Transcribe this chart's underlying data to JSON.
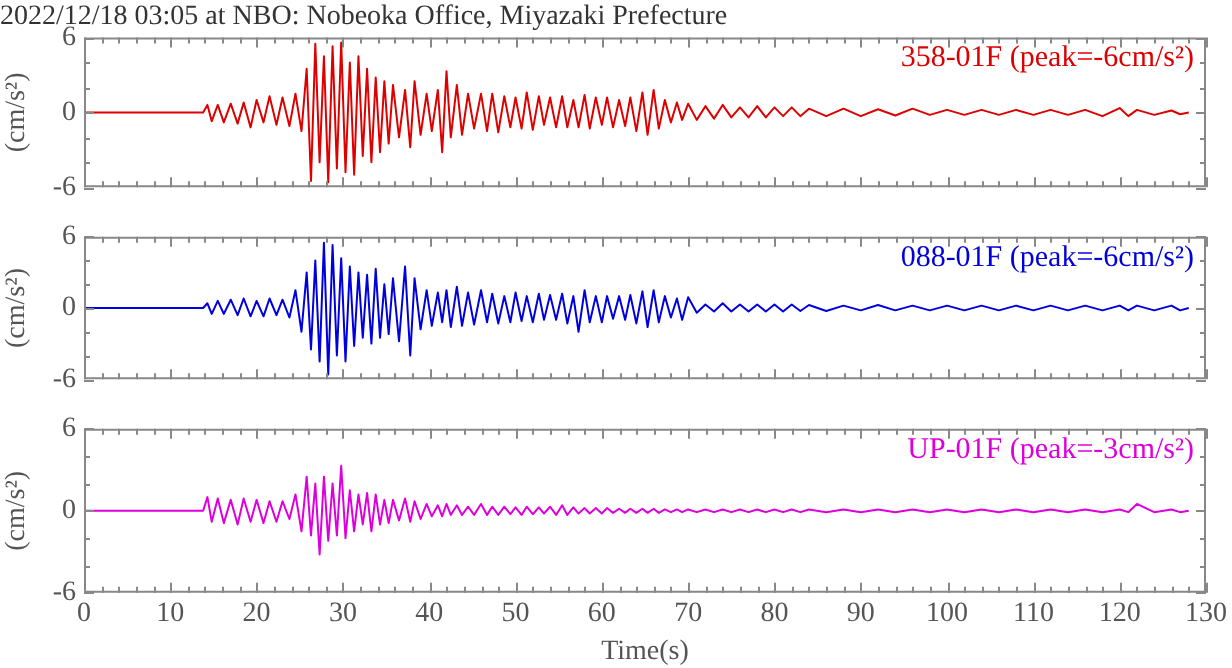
{
  "chart_data": [
    {
      "type": "line",
      "title": "2022/12/18 03:05 at NBO: Nobeoka Office, Miyazaki Prefecture",
      "ylabel": "(cm/s²)",
      "tick_labels": "y",
      "xlim": [
        0,
        130
      ],
      "ylim": [
        -6,
        6
      ],
      "yticks": [
        -6,
        {
          "value": -4,
          "label": null
        },
        {
          "value": -2,
          "label": null
        },
        0,
        {
          "value": 2,
          "label": null
        },
        {
          "value": 4,
          "label": null
        },
        6
      ],
      "xticks": [
        0,
        {
          "value": 2,
          "label": null
        },
        {
          "value": 4,
          "label": null
        },
        {
          "value": 6,
          "label": null
        },
        {
          "value": 8,
          "label": null
        },
        10,
        {
          "value": 12,
          "label": null
        },
        {
          "value": 14,
          "label": null
        },
        {
          "value": 16,
          "label": null
        },
        {
          "value": 18,
          "label": null
        },
        20,
        {
          "value": 22,
          "label": null
        },
        {
          "value": 24,
          "label": null
        },
        {
          "value": 26,
          "label": null
        },
        {
          "value": 28,
          "label": null
        },
        30,
        {
          "value": 32,
          "label": null
        },
        {
          "value": 34,
          "label": null
        },
        {
          "value": 36,
          "label": null
        },
        {
          "value": 38,
          "label": null
        },
        40,
        {
          "value": 42,
          "label": null
        },
        {
          "value": 44,
          "label": null
        },
        {
          "value": 46,
          "label": null
        },
        {
          "value": 48,
          "label": null
        },
        50,
        {
          "value": 52,
          "label": null
        },
        {
          "value": 54,
          "label": null
        },
        {
          "value": 56,
          "label": null
        },
        {
          "value": 58,
          "label": null
        },
        60,
        {
          "value": 62,
          "label": null
        },
        {
          "value": 64,
          "label": null
        },
        {
          "value": 66,
          "label": null
        },
        {
          "value": 68,
          "label": null
        },
        70,
        {
          "value": 72,
          "label": null
        },
        {
          "value": 74,
          "label": null
        },
        {
          "value": 76,
          "label": null
        },
        {
          "value": 78,
          "label": null
        },
        80,
        {
          "value": 82,
          "label": null
        },
        {
          "value": 84,
          "label": null
        },
        {
          "value": 86,
          "label": null
        },
        {
          "value": 88,
          "label": null
        },
        90,
        {
          "value": 92,
          "label": null
        },
        {
          "value": 94,
          "label": null
        },
        {
          "value": 96,
          "label": null
        },
        {
          "value": 98,
          "label": null
        },
        100,
        {
          "value": 102,
          "label": null
        },
        {
          "value": 104,
          "label": null
        },
        {
          "value": 106,
          "label": null
        },
        {
          "value": 108,
          "label": null
        },
        110,
        {
          "value": 112,
          "label": null
        },
        {
          "value": 114,
          "label": null
        },
        {
          "value": 116,
          "label": null
        },
        {
          "value": 118,
          "label": null
        },
        120,
        {
          "value": 122,
          "label": null
        },
        {
          "value": 124,
          "label": null
        },
        {
          "value": 126,
          "label": null
        },
        {
          "value": 128,
          "label": null
        },
        130
      ],
      "x": [
        0,
        13.8,
        14.3,
        14.8,
        15.5,
        16.2,
        17,
        17.8,
        18.5,
        19.3,
        20,
        20.8,
        21.5,
        22.3,
        23,
        23.8,
        24.5,
        25.2,
        25.8,
        26.3,
        26.8,
        27.3,
        27.8,
        28.3,
        28.8,
        29.3,
        29.8,
        30.3,
        30.8,
        31.3,
        31.8,
        32.3,
        32.8,
        33.3,
        33.8,
        34.3,
        34.8,
        35.3,
        35.8,
        36.5,
        37.2,
        37.8,
        38.3,
        39,
        39.7,
        40.3,
        41,
        41.5,
        42,
        42.5,
        43.2,
        43.8,
        44.5,
        45.2,
        46,
        46.7,
        47.3,
        48,
        48.7,
        49.4,
        50,
        50.7,
        51.3,
        52,
        52.7,
        53.3,
        54,
        54.7,
        55.4,
        56,
        56.7,
        57.3,
        58,
        58.6,
        59.3,
        60,
        60.6,
        61.3,
        62,
        62.7,
        63.3,
        64,
        64.7,
        65.3,
        66,
        66.6,
        67.3,
        68,
        68.7,
        69.3,
        70,
        71,
        72,
        73,
        74,
        75,
        76,
        77,
        78,
        79,
        80,
        81,
        82,
        83,
        84,
        86,
        88,
        90,
        92,
        94,
        96,
        98,
        100,
        102,
        104,
        106,
        108,
        110,
        112,
        114,
        116,
        118,
        120,
        121,
        122,
        124,
        126,
        127,
        128
      ],
      "series": [
        {
          "name": "358-01F (peak=-6cm/s²)",
          "color": "#dd0000",
          "values": [
            0,
            0,
            0.6,
            -0.7,
            0.6,
            -0.8,
            0.7,
            -0.9,
            0.8,
            -1.2,
            1.0,
            -0.8,
            1.3,
            -1.0,
            1.2,
            -1.1,
            1.5,
            -1.5,
            3.5,
            -5.5,
            5.5,
            -4.0,
            4.5,
            -5.6,
            5.3,
            -4.5,
            5.6,
            -4.8,
            4.0,
            -5.0,
            4.5,
            -3.5,
            3.5,
            -4.0,
            2.8,
            -3.2,
            2.5,
            -2.5,
            2.2,
            -2.0,
            1.8,
            -2.8,
            2.5,
            -1.8,
            1.5,
            -1.5,
            1.8,
            -3.2,
            3.3,
            -2.0,
            2.2,
            -1.8,
            1.5,
            -1.3,
            1.5,
            -1.5,
            1.5,
            -1.6,
            1.3,
            -1.2,
            1.2,
            -1.3,
            1.6,
            -1.4,
            1.3,
            -1.0,
            1.2,
            -1.2,
            1.3,
            -1.2,
            1.0,
            -1.2,
            1.4,
            -1.3,
            1.2,
            -1.0,
            1.2,
            -1.2,
            1.0,
            -1.1,
            1.2,
            -1.5,
            1.6,
            -1.8,
            1.8,
            -1.3,
            1.0,
            -0.8,
            0.8,
            -0.6,
            0.7,
            -0.6,
            0.5,
            -0.5,
            0.6,
            -0.4,
            0.4,
            -0.4,
            0.5,
            -0.4,
            0.4,
            -0.3,
            0.4,
            -0.3,
            0.3,
            -0.3,
            0.3,
            -0.3,
            0.25,
            -0.25,
            0.3,
            -0.2,
            0.2,
            -0.2,
            0.2,
            -0.2,
            0.2,
            -0.2,
            0.2,
            -0.2,
            0.2,
            -0.3,
            0.35,
            -0.3,
            0.2,
            -0.2,
            0.15,
            -0.15,
            0
          ]
        }
      ]
    },
    {
      "type": "line",
      "ylabel": "(cm/s²)",
      "tick_labels": "y",
      "xlim": [
        0,
        130
      ],
      "ylim": [
        -6,
        6
      ],
      "yticks": [
        -6,
        {
          "value": -4,
          "label": null
        },
        {
          "value": -2,
          "label": null
        },
        0,
        {
          "value": 2,
          "label": null
        },
        {
          "value": 4,
          "label": null
        },
        6
      ],
      "xticks": [
        0,
        {
          "value": 2,
          "label": null
        },
        {
          "value": 4,
          "label": null
        },
        {
          "value": 6,
          "label": null
        },
        {
          "value": 8,
          "label": null
        },
        10,
        {
          "value": 12,
          "label": null
        },
        {
          "value": 14,
          "label": null
        },
        {
          "value": 16,
          "label": null
        },
        {
          "value": 18,
          "label": null
        },
        20,
        {
          "value": 22,
          "label": null
        },
        {
          "value": 24,
          "label": null
        },
        {
          "value": 26,
          "label": null
        },
        {
          "value": 28,
          "label": null
        },
        30,
        {
          "value": 32,
          "label": null
        },
        {
          "value": 34,
          "label": null
        },
        {
          "value": 36,
          "label": null
        },
        {
          "value": 38,
          "label": null
        },
        40,
        {
          "value": 42,
          "label": null
        },
        {
          "value": 44,
          "label": null
        },
        {
          "value": 46,
          "label": null
        },
        {
          "value": 48,
          "label": null
        },
        50,
        {
          "value": 52,
          "label": null
        },
        {
          "value": 54,
          "label": null
        },
        {
          "value": 56,
          "label": null
        },
        {
          "value": 58,
          "label": null
        },
        60,
        {
          "value": 62,
          "label": null
        },
        {
          "value": 64,
          "label": null
        },
        {
          "value": 66,
          "label": null
        },
        {
          "value": 68,
          "label": null
        },
        70,
        {
          "value": 72,
          "label": null
        },
        {
          "value": 74,
          "label": null
        },
        {
          "value": 76,
          "label": null
        },
        {
          "value": 78,
          "label": null
        },
        80,
        {
          "value": 82,
          "label": null
        },
        {
          "value": 84,
          "label": null
        },
        {
          "value": 86,
          "label": null
        },
        {
          "value": 88,
          "label": null
        },
        90,
        {
          "value": 92,
          "label": null
        },
        {
          "value": 94,
          "label": null
        },
        {
          "value": 96,
          "label": null
        },
        {
          "value": 98,
          "label": null
        },
        100,
        {
          "value": 102,
          "label": null
        },
        {
          "value": 104,
          "label": null
        },
        {
          "value": 106,
          "label": null
        },
        {
          "value": 108,
          "label": null
        },
        110,
        {
          "value": 112,
          "label": null
        },
        {
          "value": 114,
          "label": null
        },
        {
          "value": 116,
          "label": null
        },
        {
          "value": 118,
          "label": null
        },
        120,
        {
          "value": 122,
          "label": null
        },
        {
          "value": 124,
          "label": null
        },
        {
          "value": 126,
          "label": null
        },
        {
          "value": 128,
          "label": null
        },
        130
      ],
      "x": [
        0,
        13.8,
        14.3,
        14.8,
        15.5,
        16.2,
        17,
        17.8,
        18.5,
        19.3,
        20,
        20.8,
        21.5,
        22.3,
        23,
        23.8,
        24.5,
        25.2,
        25.8,
        26.3,
        26.8,
        27.3,
        27.8,
        28.3,
        28.8,
        29.3,
        29.8,
        30.3,
        30.8,
        31.3,
        31.8,
        32.3,
        32.8,
        33.3,
        33.8,
        34.3,
        34.8,
        35.3,
        35.8,
        36.5,
        37.2,
        37.8,
        38.3,
        39,
        39.7,
        40.3,
        41,
        41.5,
        42,
        42.5,
        43.2,
        43.8,
        44.5,
        45.2,
        46,
        46.7,
        47.3,
        48,
        48.7,
        49.4,
        50,
        50.7,
        51.3,
        52,
        52.7,
        53.3,
        54,
        54.7,
        55.4,
        56,
        56.7,
        57.3,
        58,
        58.6,
        59.3,
        60,
        60.6,
        61.3,
        62,
        62.7,
        63.3,
        64,
        64.7,
        65.3,
        66,
        66.6,
        67.3,
        68,
        68.7,
        69.3,
        70,
        71,
        72,
        73,
        74,
        75,
        76,
        77,
        78,
        79,
        80,
        81,
        82,
        83,
        84,
        86,
        88,
        90,
        92,
        94,
        96,
        98,
        100,
        102,
        104,
        106,
        108,
        110,
        112,
        114,
        116,
        118,
        120,
        121,
        122,
        124,
        126,
        127,
        128
      ],
      "series": [
        {
          "name": "088-01F (peak=-6cm/s²)",
          "color": "#0000dd",
          "values": [
            0,
            0,
            0.4,
            -0.5,
            0.6,
            -0.5,
            0.7,
            -0.6,
            0.8,
            -0.7,
            0.6,
            -0.7,
            0.8,
            -0.6,
            0.7,
            -0.8,
            1.5,
            -2.0,
            3.0,
            -3.5,
            4.0,
            -4.5,
            5.5,
            -5.6,
            5.3,
            -4.0,
            4.2,
            -4.5,
            3.5,
            -3.2,
            3.0,
            -2.5,
            2.8,
            -3.0,
            3.3,
            -2.5,
            2.0,
            -2.2,
            2.5,
            -2.8,
            3.5,
            -4.0,
            2.5,
            -1.8,
            1.5,
            -1.5,
            1.3,
            -1.2,
            1.5,
            -1.6,
            1.8,
            -1.5,
            1.3,
            -1.4,
            1.5,
            -1.2,
            1.2,
            -1.3,
            1.0,
            -1.2,
            1.3,
            -1.1,
            1.0,
            -1.2,
            1.2,
            -1.0,
            1.1,
            -1.0,
            1.2,
            -1.3,
            1.0,
            -2.0,
            1.5,
            -1.2,
            1.0,
            -1.2,
            1.0,
            -0.9,
            1.0,
            -1.0,
            1.1,
            -1.3,
            1.4,
            -1.6,
            1.5,
            -1.2,
            1.0,
            -0.8,
            0.8,
            -1.0,
            0.9,
            -0.4,
            0.3,
            -0.3,
            0.4,
            -0.3,
            0.3,
            -0.3,
            0.3,
            -0.3,
            0.3,
            -0.3,
            0.3,
            -0.25,
            0.25,
            -0.25,
            0.2,
            -0.2,
            0.25,
            -0.2,
            0.2,
            -0.2,
            0.2,
            -0.2,
            0.2,
            -0.2,
            0.2,
            -0.2,
            0.2,
            -0.2,
            0.2,
            -0.2,
            0.2,
            -0.2,
            0.2,
            -0.2,
            0.2,
            -0.2,
            0
          ]
        }
      ]
    },
    {
      "type": "line",
      "ylabel": "(cm/s²)",
      "xlabel": "Time(s)",
      "xlim": [
        0,
        130
      ],
      "ylim": [
        -6,
        6
      ],
      "yticks": [
        -6,
        {
          "value": -4,
          "label": null
        },
        {
          "value": -2,
          "label": null
        },
        0,
        {
          "value": 2,
          "label": null
        },
        {
          "value": 4,
          "label": null
        },
        6
      ],
      "xticks": [
        0,
        {
          "value": 2,
          "label": null
        },
        {
          "value": 4,
          "label": null
        },
        {
          "value": 6,
          "label": null
        },
        {
          "value": 8,
          "label": null
        },
        10,
        {
          "value": 12,
          "label": null
        },
        {
          "value": 14,
          "label": null
        },
        {
          "value": 16,
          "label": null
        },
        {
          "value": 18,
          "label": null
        },
        20,
        {
          "value": 22,
          "label": null
        },
        {
          "value": 24,
          "label": null
        },
        {
          "value": 26,
          "label": null
        },
        {
          "value": 28,
          "label": null
        },
        30,
        {
          "value": 32,
          "label": null
        },
        {
          "value": 34,
          "label": null
        },
        {
          "value": 36,
          "label": null
        },
        {
          "value": 38,
          "label": null
        },
        40,
        {
          "value": 42,
          "label": null
        },
        {
          "value": 44,
          "label": null
        },
        {
          "value": 46,
          "label": null
        },
        {
          "value": 48,
          "label": null
        },
        50,
        {
          "value": 52,
          "label": null
        },
        {
          "value": 54,
          "label": null
        },
        {
          "value": 56,
          "label": null
        },
        {
          "value": 58,
          "label": null
        },
        60,
        {
          "value": 62,
          "label": null
        },
        {
          "value": 64,
          "label": null
        },
        {
          "value": 66,
          "label": null
        },
        {
          "value": 68,
          "label": null
        },
        70,
        {
          "value": 72,
          "label": null
        },
        {
          "value": 74,
          "label": null
        },
        {
          "value": 76,
          "label": null
        },
        {
          "value": 78,
          "label": null
        },
        80,
        {
          "value": 82,
          "label": null
        },
        {
          "value": 84,
          "label": null
        },
        {
          "value": 86,
          "label": null
        },
        {
          "value": 88,
          "label": null
        },
        90,
        {
          "value": 92,
          "label": null
        },
        {
          "value": 94,
          "label": null
        },
        {
          "value": 96,
          "label": null
        },
        {
          "value": 98,
          "label": null
        },
        100,
        {
          "value": 102,
          "label": null
        },
        {
          "value": 104,
          "label": null
        },
        {
          "value": 106,
          "label": null
        },
        {
          "value": 108,
          "label": null
        },
        110,
        {
          "value": 112,
          "label": null
        },
        {
          "value": 114,
          "label": null
        },
        {
          "value": 116,
          "label": null
        },
        {
          "value": 118,
          "label": null
        },
        120,
        {
          "value": 122,
          "label": null
        },
        {
          "value": 124,
          "label": null
        },
        {
          "value": 126,
          "label": null
        },
        {
          "value": 128,
          "label": null
        },
        130
      ],
      "x": [
        0,
        13.8,
        14.3,
        14.8,
        15.5,
        16.2,
        17,
        17.8,
        18.5,
        19.3,
        20,
        20.8,
        21.5,
        22.3,
        23,
        23.8,
        24.5,
        25.2,
        25.8,
        26.3,
        26.8,
        27.3,
        27.8,
        28.3,
        28.8,
        29.3,
        29.8,
        30.3,
        30.8,
        31.3,
        31.8,
        32.3,
        32.8,
        33.3,
        33.8,
        34.3,
        34.8,
        35.3,
        35.8,
        36.5,
        37.2,
        37.8,
        38.3,
        39,
        39.7,
        40.3,
        41,
        41.5,
        42,
        42.5,
        43.2,
        43.8,
        44.5,
        45.2,
        46,
        46.7,
        47.3,
        48,
        48.7,
        49.4,
        50,
        50.7,
        51.3,
        52,
        52.7,
        53.3,
        54,
        54.7,
        55.4,
        56,
        56.7,
        57.3,
        58,
        58.6,
        59.3,
        60,
        60.6,
        61.3,
        62,
        62.7,
        63.3,
        64,
        64.7,
        65.3,
        66,
        66.6,
        67.3,
        68,
        68.7,
        69.3,
        70,
        71,
        72,
        73,
        74,
        75,
        76,
        77,
        78,
        79,
        80,
        81,
        82,
        83,
        84,
        86,
        88,
        90,
        92,
        94,
        96,
        98,
        100,
        102,
        104,
        106,
        108,
        110,
        112,
        114,
        116,
        118,
        120,
        121,
        122,
        124,
        126,
        127,
        128
      ],
      "series": [
        {
          "name": "UP-01F (peak=-3cm/s²)",
          "color": "#dd00dd",
          "values": [
            0,
            0,
            1.0,
            -0.8,
            0.9,
            -0.9,
            0.8,
            -1.0,
            0.9,
            -0.8,
            0.8,
            -0.9,
            0.7,
            -0.8,
            0.7,
            -0.6,
            1.2,
            -1.5,
            2.5,
            -1.8,
            2.0,
            -3.2,
            2.5,
            -2.2,
            2.0,
            -1.8,
            3.3,
            -2.0,
            1.5,
            -1.5,
            1.2,
            -1.0,
            1.3,
            -1.5,
            1.2,
            -1.0,
            0.8,
            -0.9,
            0.8,
            -0.7,
            0.9,
            -0.8,
            0.7,
            -0.6,
            0.5,
            -0.4,
            0.4,
            -0.4,
            0.5,
            -0.3,
            0.4,
            -0.3,
            0.3,
            -0.3,
            0.5,
            -0.3,
            0.3,
            -0.3,
            0.3,
            -0.25,
            0.25,
            -0.3,
            0.3,
            -0.25,
            0.25,
            -0.2,
            0.3,
            -0.3,
            0.4,
            -0.3,
            0.25,
            -0.2,
            0.2,
            -0.2,
            0.2,
            -0.2,
            0.2,
            -0.15,
            0.15,
            -0.15,
            0.15,
            -0.15,
            0.15,
            -0.15,
            0.15,
            -0.15,
            0.1,
            -0.1,
            0.1,
            -0.1,
            0.1,
            -0.1,
            0.1,
            -0.1,
            0.1,
            -0.1,
            0.1,
            -0.1,
            0.1,
            -0.1,
            0.1,
            -0.1,
            0.1,
            -0.1,
            0.1,
            -0.1,
            0.1,
            -0.1,
            0.1,
            -0.1,
            0.1,
            -0.1,
            0.1,
            -0.1,
            0.1,
            -0.1,
            0.1,
            -0.1,
            0.1,
            -0.1,
            0.1,
            -0.1,
            0.1,
            -0.1,
            0.5,
            -0.1,
            0.1,
            -0.1,
            0
          ]
        }
      ]
    }
  ]
}
